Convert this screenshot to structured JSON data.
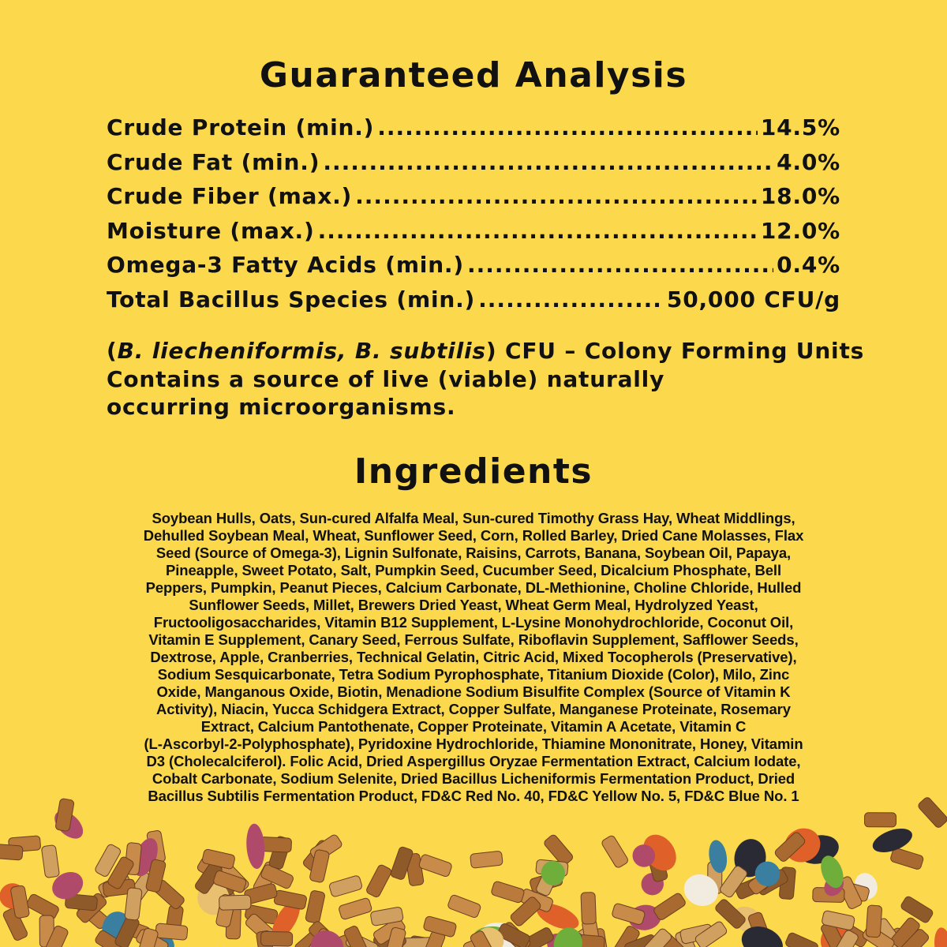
{
  "analysis": {
    "title": "Guaranteed Analysis",
    "rows": [
      {
        "label": "Crude Protein (min.)",
        "value": "14.5%"
      },
      {
        "label": "Crude Fat (min.)",
        "value": "4.0%"
      },
      {
        "label": "Crude Fiber (max.)",
        "value": "18.0%"
      },
      {
        "label": "Moisture (max.)",
        "value": "12.0%"
      },
      {
        "label": "Omega-3 Fatty Acids (min.)",
        "value": "0.4%"
      },
      {
        "label": "Total Bacillus Species (min.)",
        "value": "50,000 CFU/g"
      }
    ],
    "note": {
      "open": "(",
      "species": "B. liecheniformis, B. subtilis",
      "rest1": ") CFU – Colony Forming Units",
      "line2": "Contains a source of live (viable) naturally",
      "line3": "occurring microorganisms."
    }
  },
  "ingredients": {
    "title": "Ingredients",
    "lines": [
      "Soybean Hulls, Oats, Sun-cured Alfalfa Meal, Sun-cured Timothy Grass Hay, Wheat Middlings,",
      "Dehulled Soybean Meal, Wheat, Sunflower Seed, Corn, Rolled Barley, Dried Cane Molasses, Flax",
      "Seed (Source of Omega-3), Lignin Sulfonate, Raisins, Carrots, Banana, Soybean Oil, Papaya,",
      "Pineapple, Sweet Potato, Salt, Pumpkin Seed, Cucumber Seed, Dicalcium Phosphate, Bell",
      "Peppers, Pumpkin, Peanut Pieces, Calcium Carbonate, DL-Methionine, Choline Chloride, Hulled",
      "Sunflower Seeds, Millet, Brewers Dried Yeast, Wheat Germ Meal, Hydrolyzed Yeast,",
      "Fructooligosaccharides, Vitamin B12 Supplement, L-Lysine Monohydrochloride, Coconut Oil,",
      "Vitamin E Supplement, Canary Seed, Ferrous Sulfate, Riboflavin Supplement, Safflower Seeds,",
      "Dextrose, Apple, Cranberries, Technical Gelatin, Citric Acid, Mixed Tocopherols (Preservative),",
      "Sodium Sesquicarbonate, Tetra Sodium Pyrophosphate, Titanium Dioxide (Color), Milo, Zinc",
      "Oxide, Manganous Oxide, Biotin, Menadione Sodium Bisulfite Complex (Source of Vitamin K",
      "Activity), Niacin, Yucca Schidgera Extract, Copper Sulfate, Manganese Proteinate, Rosemary",
      "Extract, Calcium Pantothenate, Copper Proteinate, Vitamin A Acetate, Vitamin C",
      "(L-Ascorbyl-2-Polyphosphate), Pyridoxine Hydrochloride, Thiamine Mononitrate, Honey, Vitamin",
      "D3 (Cholecalciferol). Folic Acid, Dried Aspergillus Oryzae Fermentation Extract, Calcium Iodate,",
      "Cobalt Carbonate, Sodium Selenite, Dried Bacillus Licheniformis Fermentation Product, Dried",
      "Bacillus Subtilis Fermentation Product, FD&C Red No. 40, FD&C Yellow No. 5, FD&C Blue No. 1"
    ]
  },
  "colors": {
    "background": "#fcd94c",
    "text": "#111111"
  },
  "decoration": "food-pellets-and-seeds-image"
}
